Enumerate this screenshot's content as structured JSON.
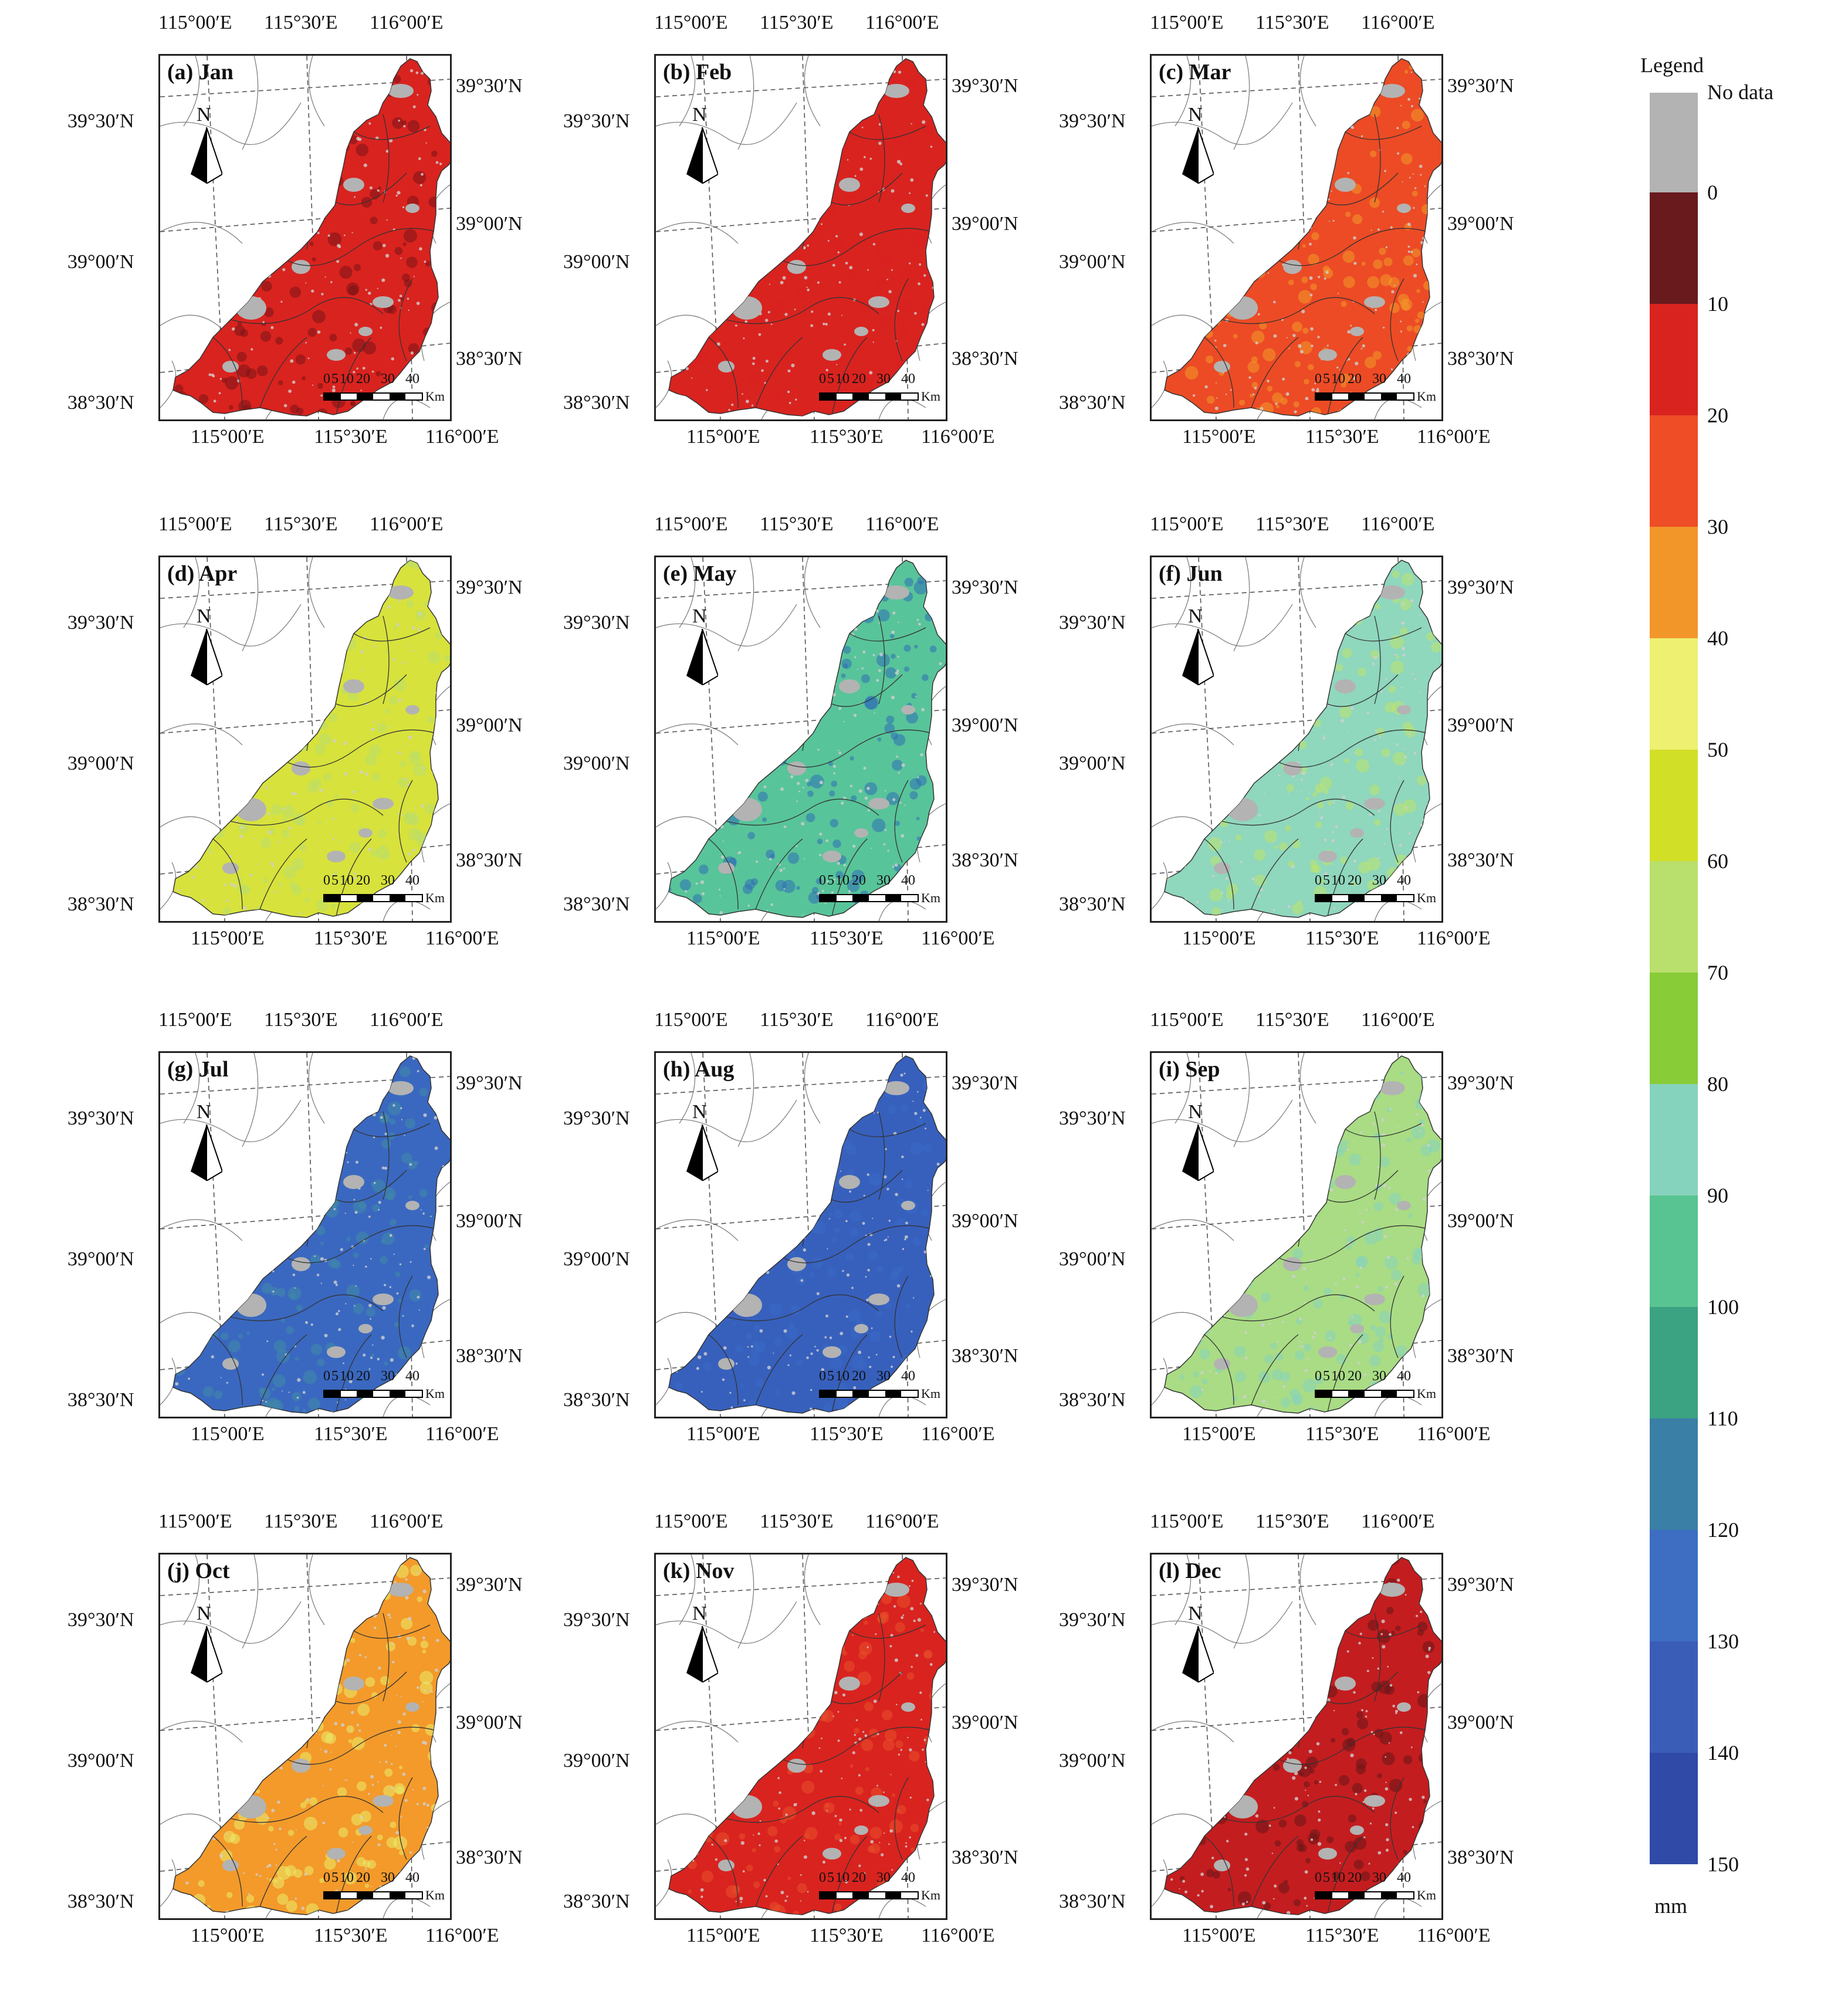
{
  "axes": {
    "lon_labels": [
      "115°00′E",
      "115°30′E",
      "116°00′E"
    ],
    "lat_labels": [
      "39°30′N",
      "39°00′N",
      "38°30′N"
    ]
  },
  "north_arrow_letter": "N",
  "scale_bar": {
    "ticks": [
      "0",
      "5",
      "10",
      "20",
      "30",
      "40"
    ],
    "unit": "Km"
  },
  "panels": [
    {
      "label": "(a) Jan",
      "fill": "#d9231f",
      "spots": "#7a1416"
    },
    {
      "label": "(b) Feb",
      "fill": "#d9231f",
      "spots": "#d9231f"
    },
    {
      "label": "(c) Mar",
      "fill": "#ec4b25",
      "spots": "#f39a2a"
    },
    {
      "label": "(d) Apr",
      "fill": "#d7e23c",
      "spots": "#b9df6c"
    },
    {
      "label": "(e) May",
      "fill": "#58c49a",
      "spots": "#2f6fb5"
    },
    {
      "label": "(f) Jun",
      "fill": "#8fd7bd",
      "spots": "#bde36b"
    },
    {
      "label": "(g) Jul",
      "fill": "#3a68c0",
      "spots": "#3f8aa6"
    },
    {
      "label": "(h) Aug",
      "fill": "#3760bd",
      "spots": "#3a69c6"
    },
    {
      "label": "(i) Sep",
      "fill": "#a9dc84",
      "spots": "#86d3bd"
    },
    {
      "label": "(j) Oct",
      "fill": "#f39a2a",
      "spots": "#eaee6a"
    },
    {
      "label": "(k) Nov",
      "fill": "#d9231f",
      "spots": "#e8512a"
    },
    {
      "label": "(l) Dec",
      "fill": "#c41d1f",
      "spots": "#681518"
    }
  ],
  "legend": {
    "title": "Legend",
    "no_data_label": "No data",
    "no_data_color": "#b3b3b3",
    "unit": "mm",
    "tick_labels": [
      "0",
      "10",
      "20",
      "30",
      "40",
      "50",
      "60",
      "70",
      "80",
      "90",
      "100",
      "110",
      "120",
      "130",
      "140",
      "150"
    ],
    "colors": [
      "#681a1d",
      "#d9231f",
      "#ee4d26",
      "#f3962a",
      "#eef071",
      "#d2df27",
      "#b9df6c",
      "#88cc37",
      "#86d3bd",
      "#58c491",
      "#3ba382",
      "#3a7fa6",
      "#3d6ec2",
      "#3a5db8",
      "#2f4aa7"
    ]
  }
}
